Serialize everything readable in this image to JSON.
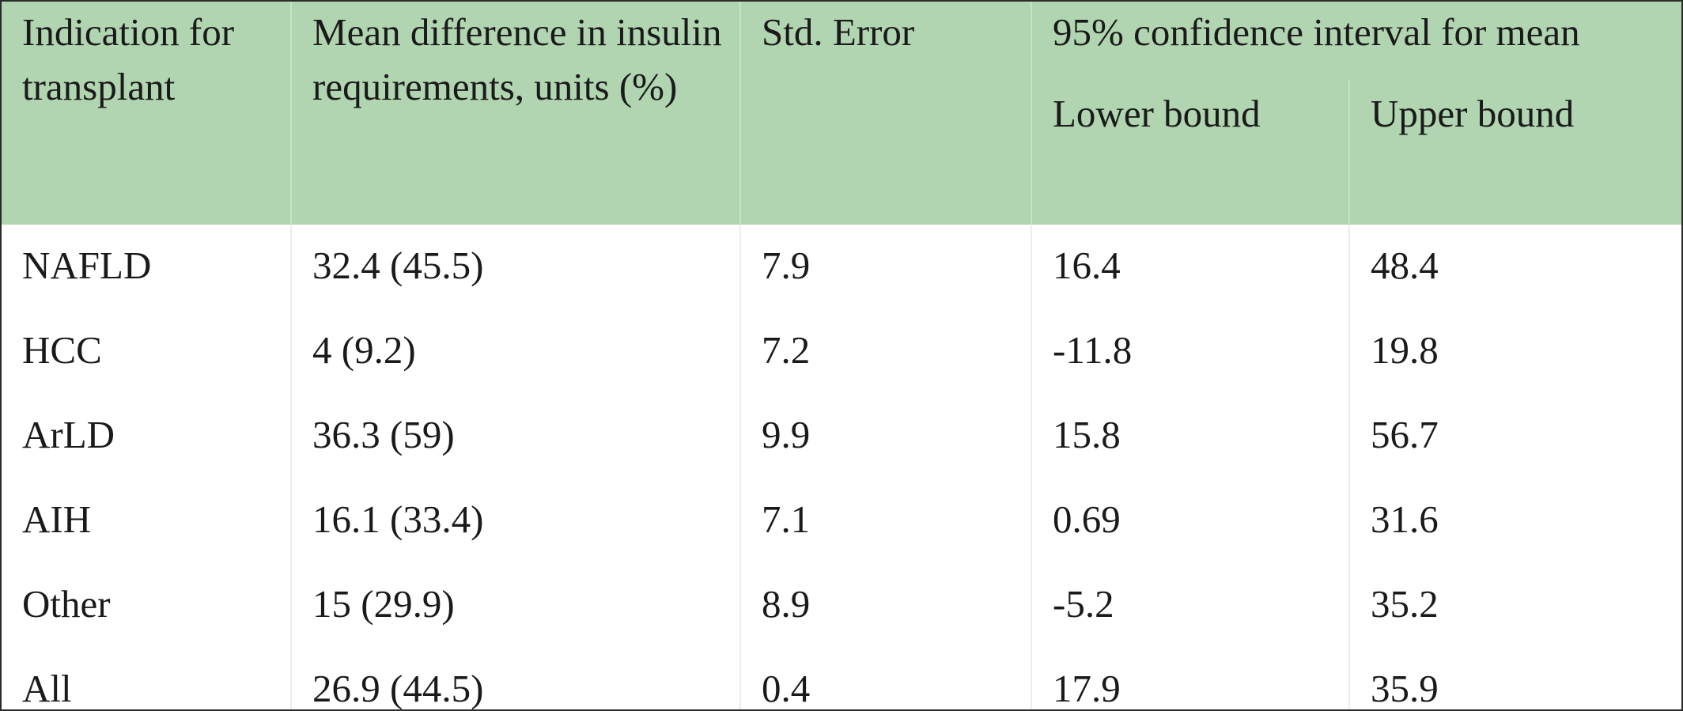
{
  "table": {
    "headers": {
      "indication": "Indication for transplant",
      "mean_diff": "Mean difference in insulin requirements, units (%)",
      "std_error": "Std. Error",
      "ci_group": "95% confidence interval for mean",
      "lower": "Lower bound",
      "upper": "Upper bound"
    },
    "rows": [
      {
        "indication": "NAFLD",
        "mean_diff": "32.4 (45.5)",
        "std_error": "7.9",
        "lower": "16.4",
        "upper": "48.4"
      },
      {
        "indication": "HCC",
        "mean_diff": "4 (9.2)",
        "std_error": "7.2",
        "lower": "-11.8",
        "upper": "19.8"
      },
      {
        "indication": "ArLD",
        "mean_diff": "36.3 (59)",
        "std_error": "9.9",
        "lower": "15.8",
        "upper": "56.7"
      },
      {
        "indication": "AIH",
        "mean_diff": "16.1 (33.4)",
        "std_error": "7.1",
        "lower": "0.69",
        "upper": "31.6"
      },
      {
        "indication": "Other",
        "mean_diff": "15 (29.9)",
        "std_error": "8.9",
        "lower": "-5.2",
        "upper": "35.2"
      },
      {
        "indication": "All",
        "mean_diff": "26.9 (44.5)",
        "std_error": "0.4",
        "lower": "17.9",
        "upper": "35.9"
      }
    ],
    "colors": {
      "header_background": "#b0d5b0",
      "border": "#2b2b2b"
    }
  }
}
